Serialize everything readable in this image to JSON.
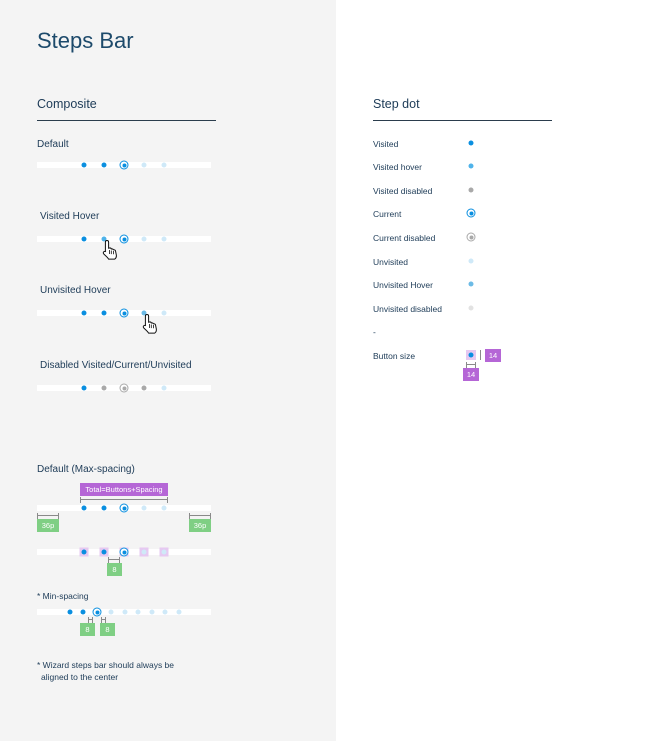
{
  "page": {
    "title": "Steps Bar"
  },
  "composite": {
    "title": "Composite",
    "default_label": "Default",
    "visited_hover_label": "Visited Hover",
    "unvisited_hover_label": "Unvisited Hover",
    "disabled_label": "Disabled Visited/Current/Unvisited",
    "max_spacing_label": "Default (Max-spacing)",
    "total_tag": "Total=Buttons+Spacing",
    "edge_spacing_tag": "36p",
    "button_spacing_tag": "8",
    "min_spacing_label": "* Min-spacing",
    "footnote_line1": "* Wizard steps bar should always be",
    "footnote_line2": "aligned to the center"
  },
  "step_dot": {
    "title": "Step dot",
    "items": [
      {
        "label": "Visited",
        "state": "visited"
      },
      {
        "label": "Visited hover",
        "state": "visited-hover"
      },
      {
        "label": "Visited disabled",
        "state": "visited-disabled"
      },
      {
        "label": "Current",
        "state": "current"
      },
      {
        "label": "Current disabled",
        "state": "current-disabled"
      },
      {
        "label": "Unvisited",
        "state": "unvisited"
      },
      {
        "label": "Unvisited Hover",
        "state": "unvisited-hover"
      },
      {
        "label": "Unvisited disabled",
        "state": "unvisited-disabled"
      }
    ],
    "separator": "-",
    "button_size_label": "Button size",
    "button_size_w": "14",
    "button_size_h": "14"
  },
  "colors": {
    "visited": "#0a8fe0",
    "visited_hover": "#4fb3ea",
    "disabled": "#a9a9a9",
    "unvisited": "#cfe9f8",
    "tag_green": "#7fcf84",
    "tag_purple": "#b566d6"
  },
  "icons": {
    "hover_cursor": "hand-pointer-icon"
  }
}
